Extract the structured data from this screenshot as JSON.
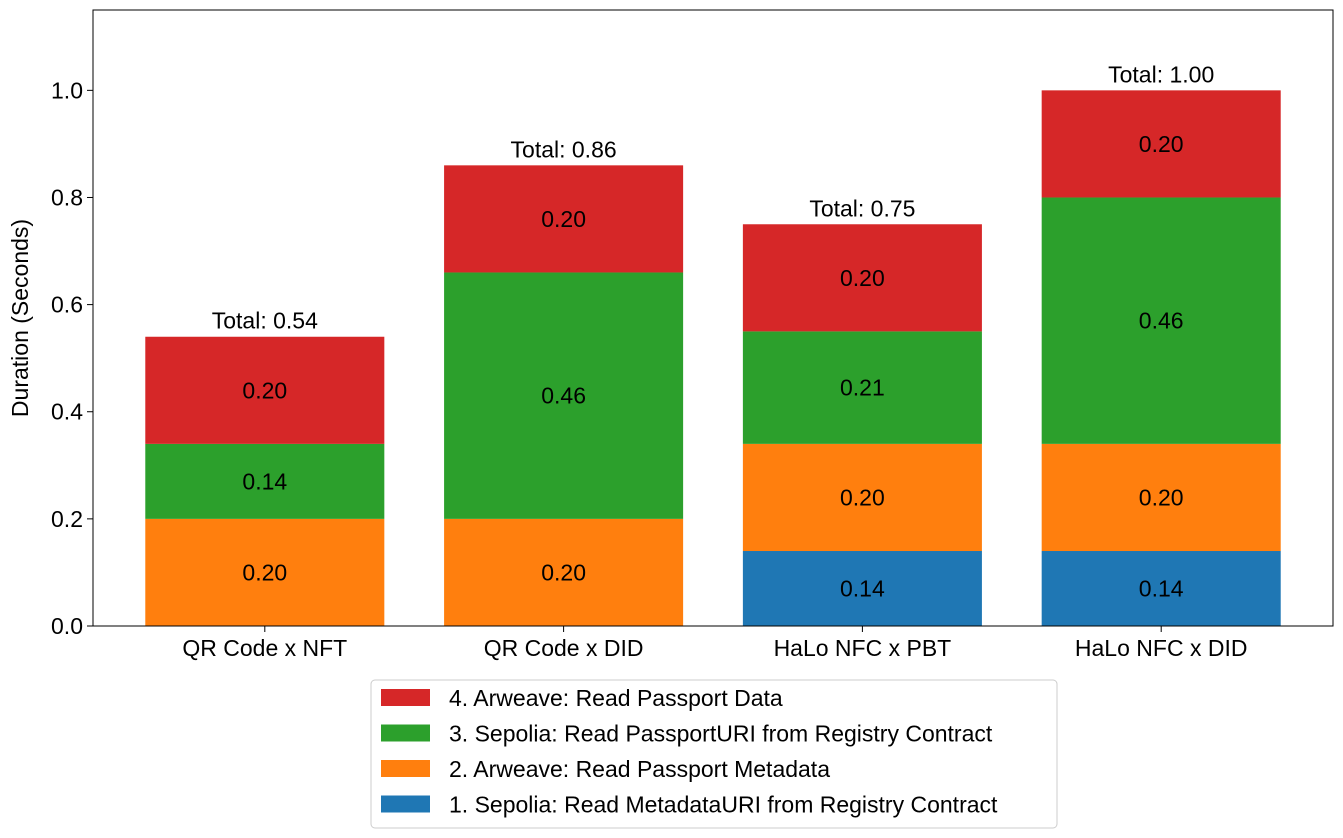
{
  "chart_data": {
    "type": "bar",
    "stacked": true,
    "title": "",
    "xlabel": "",
    "ylabel": "Duration (Seconds)",
    "ylim": [
      0,
      1.15
    ],
    "yticks": [
      0.0,
      0.2,
      0.4,
      0.6,
      0.8,
      1.0
    ],
    "ytick_labels": [
      "0.0",
      "0.2",
      "0.4",
      "0.6",
      "0.8",
      "1.0"
    ],
    "grid": false,
    "legend_position": "bottom-center",
    "categories": [
      "QR Code x NFT",
      "QR Code x DID",
      "HaLo NFC x PBT",
      "HaLo NFC x DID"
    ],
    "series": [
      {
        "name": "1. Sepolia: Read MetadataURI from Registry Contract",
        "color": "#1f77b4",
        "values": [
          0,
          0,
          0.14,
          0.14
        ],
        "labels": [
          "",
          "",
          "0.14",
          "0.14"
        ]
      },
      {
        "name": "2. Arweave: Read Passport Metadata",
        "color": "#ff7f0e",
        "values": [
          0.2,
          0.2,
          0.2,
          0.2
        ],
        "labels": [
          "0.20",
          "0.20",
          "0.20",
          "0.20"
        ]
      },
      {
        "name": "3. Sepolia: Read PassportURI from Registry Contract",
        "color": "#2ca02c",
        "values": [
          0.14,
          0.46,
          0.21,
          0.46
        ],
        "labels": [
          "0.14",
          "0.46",
          "0.21",
          "0.46"
        ]
      },
      {
        "name": "4. Arweave: Read Passport Data",
        "color": "#d62728",
        "values": [
          0.2,
          0.2,
          0.2,
          0.2
        ],
        "labels": [
          "0.20",
          "0.20",
          "0.20",
          "0.20"
        ]
      }
    ],
    "totals": [
      0.54,
      0.86,
      0.75,
      1.0
    ],
    "total_labels": [
      "Total: 0.54",
      "Total: 0.86",
      "Total: 0.75",
      "Total: 1.00"
    ],
    "legend_order": [
      3,
      2,
      1,
      0
    ]
  }
}
